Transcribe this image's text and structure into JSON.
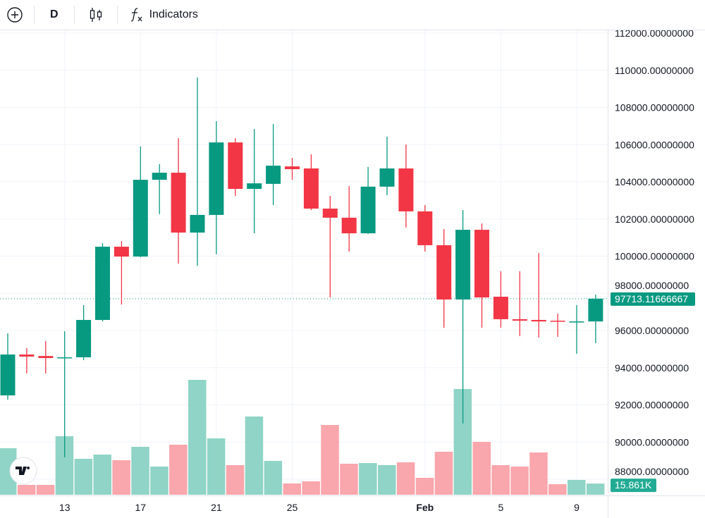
{
  "toolbar": {
    "add_symbol_icon": "plus-circle-icon",
    "interval": "D",
    "chart_type_icon": "candles-icon",
    "indicators_icon": "fx-icon",
    "indicators_label": "Indicators"
  },
  "colors": {
    "up": "#089981",
    "down": "#f23645",
    "up_volume": "#8fd4c6",
    "down_volume": "#f9a6ac",
    "grid": "#f0f3fa"
  },
  "chart_data": {
    "type": "candlestick",
    "title": "",
    "dates": [
      "Jan 10",
      "Jan 11",
      "Jan 12",
      "Jan 13",
      "Jan 14",
      "Jan 15",
      "Jan 16",
      "Jan 17",
      "Jan 18",
      "Jan 19",
      "Jan 20",
      "Jan 21",
      "Jan 22",
      "Jan 23",
      "Jan 24",
      "Jan 25",
      "Jan 26",
      "Jan 27",
      "Jan 28",
      "Jan 29",
      "Jan 30",
      "Jan 31",
      "Feb 1",
      "Feb 2",
      "Feb 3",
      "Feb 4",
      "Feb 5",
      "Feb 6",
      "Feb 7",
      "Feb 8",
      "Feb 9",
      "Feb 10"
    ],
    "ohlc": [
      [
        92510,
        95850,
        92280,
        94710
      ],
      [
        94710,
        95050,
        93690,
        94600
      ],
      [
        94630,
        95430,
        93690,
        94520
      ],
      [
        94520,
        95960,
        89180,
        94560
      ],
      [
        94560,
        97370,
        94410,
        96570
      ],
      [
        96570,
        100700,
        96490,
        100510
      ],
      [
        100510,
        100820,
        97400,
        99980
      ],
      [
        99980,
        105900,
        99950,
        104110
      ],
      [
        104110,
        104950,
        102260,
        104490
      ],
      [
        104490,
        106350,
        99600,
        101270
      ],
      [
        101270,
        109610,
        99490,
        102220
      ],
      [
        102220,
        107260,
        100100,
        106120
      ],
      [
        106120,
        106350,
        103240,
        103620
      ],
      [
        103620,
        106840,
        101230,
        103920
      ],
      [
        103890,
        107110,
        102750,
        104870
      ],
      [
        104830,
        105290,
        104110,
        104680
      ],
      [
        104720,
        105480,
        102480,
        102560
      ],
      [
        102560,
        103240,
        97780,
        102070
      ],
      [
        102070,
        103770,
        100250,
        101230
      ],
      [
        101230,
        104800,
        101200,
        103740
      ],
      [
        103740,
        106430,
        103280,
        104720
      ],
      [
        104720,
        106010,
        101540,
        102410
      ],
      [
        102410,
        102750,
        100250,
        100590
      ],
      [
        100590,
        101460,
        96150,
        97670
      ],
      [
        97670,
        102480,
        91000,
        101420
      ],
      [
        101420,
        101760,
        96150,
        97780
      ],
      [
        97820,
        99190,
        96150,
        96610
      ],
      [
        96610,
        99190,
        95700,
        96530
      ],
      [
        96570,
        100170,
        95620,
        96490
      ],
      [
        96530,
        96910,
        95660,
        96490
      ],
      [
        96460,
        97370,
        94750,
        96490
      ],
      [
        96490,
        97930,
        95320,
        97713.11666667
      ]
    ],
    "volume_k": [
      66,
      14,
      14,
      83,
      51,
      57,
      49,
      68,
      40,
      71,
      163,
      80,
      42,
      111,
      48,
      16,
      19,
      99,
      44,
      45,
      42,
      46,
      24,
      61,
      150,
      75,
      42,
      40,
      60,
      15,
      21,
      15.861
    ],
    "ylim": [
      87000,
      112500
    ],
    "y_ticks": [
      "112000.00000000",
      "110000.00000000",
      "108000.00000000",
      "106000.00000000",
      "104000.00000000",
      "102000.00000000",
      "100000.00000000",
      "98000.00000000",
      "96000.00000000",
      "94000.00000000",
      "92000.00000000",
      "90000.00000000",
      "88000.00000000"
    ],
    "x_ticks": [
      {
        "label": "13",
        "date": "Jan 13"
      },
      {
        "label": "17",
        "date": "Jan 17"
      },
      {
        "label": "21",
        "date": "Jan 21"
      },
      {
        "label": "25",
        "date": "Jan 25"
      },
      {
        "label": "Feb",
        "date": "Feb 1"
      },
      {
        "label": "5",
        "date": "Feb 5"
      },
      {
        "label": "9",
        "date": "Feb 9"
      }
    ],
    "last_price_label": "97713.11666667",
    "last_volume_label": "15.861K",
    "grid": true
  }
}
